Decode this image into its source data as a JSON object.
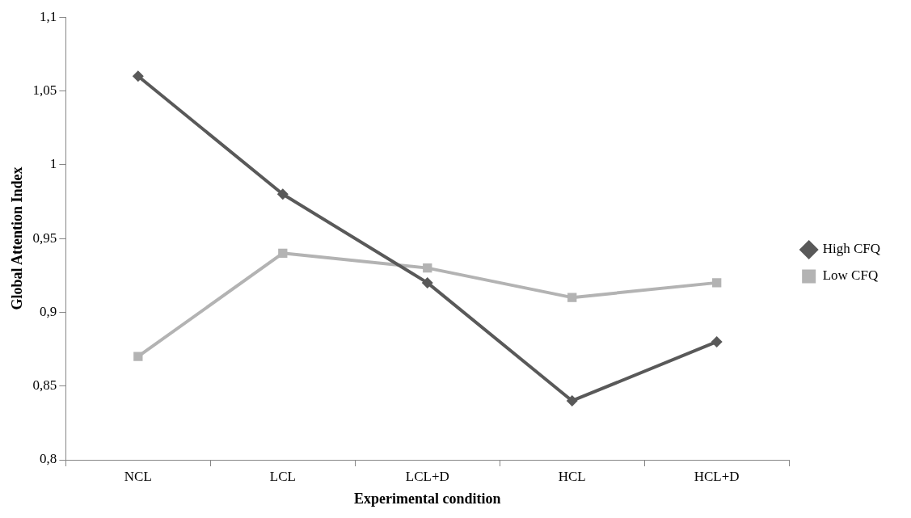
{
  "chart_data": {
    "type": "line",
    "xlabel": "Experimental condition",
    "ylabel": "Global Attention Index",
    "categories": [
      "NCL",
      "LCL",
      "LCL+D",
      "HCL",
      "HCL+D"
    ],
    "series": [
      {
        "name": "High CFQ",
        "color": "#595959",
        "marker": "diamond",
        "values": [
          1.06,
          0.98,
          0.92,
          0.84,
          0.88
        ]
      },
      {
        "name": "Low CFQ",
        "color": "#b3b3b3",
        "marker": "square",
        "values": [
          0.87,
          0.94,
          0.93,
          0.91,
          0.92
        ]
      }
    ],
    "ylim": [
      0.8,
      1.1
    ],
    "yticks": [
      {
        "value": 0.8,
        "label": "0,8"
      },
      {
        "value": 0.85,
        "label": "0,85"
      },
      {
        "value": 0.9,
        "label": "0,9"
      },
      {
        "value": 0.95,
        "label": "0,95"
      },
      {
        "value": 1,
        "label": "1"
      },
      {
        "value": 1.05,
        "label": "1,05"
      },
      {
        "value": 1.1,
        "label": "1,1"
      }
    ],
    "grid": false,
    "legend": "right",
    "line_style": "solid"
  }
}
